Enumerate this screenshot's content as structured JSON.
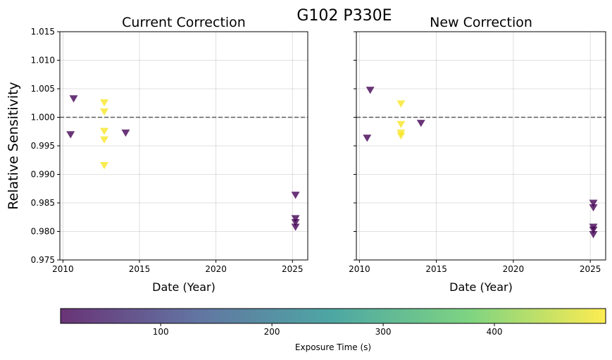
{
  "chart_data": {
    "suptitle": "G102 P330E",
    "type": "scatter",
    "marker": "triangle-down",
    "colormap": {
      "name": "viridis",
      "colors": [
        "#440154",
        "#3b528b",
        "#21918c",
        "#5ec962",
        "#fde725"
      ],
      "vmin": 10,
      "vmax": 500,
      "ticks": [
        "100",
        "200",
        "300",
        "400"
      ],
      "tick_values": [
        100,
        200,
        300,
        400
      ],
      "label": "Exposure Time (s)"
    },
    "panels": [
      {
        "title": "Current Correction",
        "xlabel": "Date (Year)",
        "ylabel": "Relative Sensitivity",
        "xlim": [
          2009.8,
          2026
        ],
        "ylim": [
          0.975,
          1.015
        ],
        "xticks": [
          "2010",
          "2015",
          "2020",
          "2025"
        ],
        "xtick_values": [
          2010,
          2015,
          2020,
          2025
        ],
        "yticks": [
          "0.975",
          "0.980",
          "0.985",
          "0.990",
          "0.995",
          "1.000",
          "1.005",
          "1.010",
          "1.015"
        ],
        "ytick_values": [
          0.975,
          0.98,
          0.985,
          0.99,
          0.995,
          1.0,
          1.005,
          1.01,
          1.015
        ],
        "reference_line": 1.0,
        "points": [
          {
            "x": 2010.5,
            "y": 0.997,
            "exposure": 12
          },
          {
            "x": 2010.7,
            "y": 1.0033,
            "exposure": 12
          },
          {
            "x": 2012.7,
            "y": 1.0026,
            "exposure": 495
          },
          {
            "x": 2012.7,
            "y": 1.001,
            "exposure": 495
          },
          {
            "x": 2012.7,
            "y": 0.9976,
            "exposure": 495
          },
          {
            "x": 2012.7,
            "y": 0.9961,
            "exposure": 495
          },
          {
            "x": 2012.7,
            "y": 0.9916,
            "exposure": 495
          },
          {
            "x": 2014.1,
            "y": 0.9973,
            "exposure": 12
          },
          {
            "x": 2025.2,
            "y": 0.9864,
            "exposure": 12
          },
          {
            "x": 2025.2,
            "y": 0.9823,
            "exposure": 12
          },
          {
            "x": 2025.2,
            "y": 0.9816,
            "exposure": 12
          },
          {
            "x": 2025.2,
            "y": 0.9808,
            "exposure": 12
          }
        ]
      },
      {
        "title": "New Correction",
        "xlabel": "Date (Year)",
        "ylabel": "",
        "xlim": [
          2009.8,
          2026
        ],
        "ylim": [
          0.975,
          1.015
        ],
        "xticks": [
          "2010",
          "2015",
          "2020",
          "2025"
        ],
        "xtick_values": [
          2010,
          2015,
          2020,
          2025
        ],
        "yticks": [],
        "ytick_values": [
          0.975,
          0.98,
          0.985,
          0.99,
          0.995,
          1.0,
          1.005,
          1.01,
          1.015
        ],
        "reference_line": 1.0,
        "points": [
          {
            "x": 2010.5,
            "y": 0.9964,
            "exposure": 12
          },
          {
            "x": 2010.7,
            "y": 1.0048,
            "exposure": 12
          },
          {
            "x": 2012.7,
            "y": 1.0024,
            "exposure": 495
          },
          {
            "x": 2012.7,
            "y": 0.9988,
            "exposure": 495
          },
          {
            "x": 2012.7,
            "y": 0.9973,
            "exposure": 495
          },
          {
            "x": 2012.7,
            "y": 0.9968,
            "exposure": 495
          },
          {
            "x": 2014.0,
            "y": 0.999,
            "exposure": 12
          },
          {
            "x": 2025.2,
            "y": 0.985,
            "exposure": 12
          },
          {
            "x": 2025.2,
            "y": 0.9842,
            "exposure": 12
          },
          {
            "x": 2025.2,
            "y": 0.9808,
            "exposure": 12
          },
          {
            "x": 2025.2,
            "y": 0.9803,
            "exposure": 12
          },
          {
            "x": 2025.2,
            "y": 0.9795,
            "exposure": 12
          }
        ]
      }
    ]
  }
}
